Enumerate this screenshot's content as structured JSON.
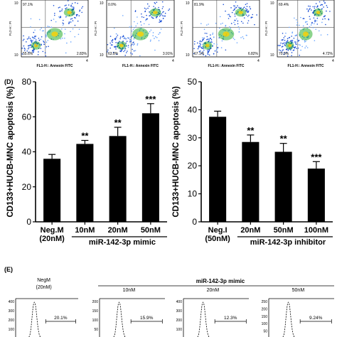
{
  "flow_panels": {
    "top_labels": [
      "97.1%",
      "0.0%",
      "81.9%",
      "69.4%"
    ],
    "bottom_left": [
      "55.6%",
      "63.8%",
      "67.1%",
      "70.9%"
    ],
    "bottom_right": [
      "2.83%",
      "3.91%",
      "6.82%",
      "4.72%"
    ],
    "ylabel": "FL2-H:: PI",
    "xlabel": "FL1-H:: Annexin FITC",
    "tick_top": "10",
    "tick_bottom": "10",
    "tick_exp": "4"
  },
  "panel_d_label": "(D)",
  "panel_e_label": "(E)",
  "chart_data": [
    {
      "type": "bar",
      "ylabel": "CD133+HUCB-MNC apoptosis (%)",
      "ylim": [
        0,
        80
      ],
      "yticks": [
        0,
        20,
        40,
        60,
        80
      ],
      "categories": [
        "Neg.M\n(20nM)",
        "10nM",
        "20nM",
        "50nM"
      ],
      "values": [
        36,
        44.5,
        49,
        62
      ],
      "errors": [
        2.5,
        2,
        5,
        5.5
      ],
      "significance": [
        "",
        "**",
        "**",
        "***"
      ],
      "group_label": "miR-142-3p mimic"
    },
    {
      "type": "bar",
      "ylabel": "CD133+HUCB-MNC apoptosis (%)",
      "ylim": [
        0,
        50
      ],
      "yticks": [
        0,
        10,
        20,
        30,
        40,
        50
      ],
      "categories": [
        "Neg.I\n(50nM)",
        "20nM",
        "50nM",
        "100nM"
      ],
      "values": [
        37.5,
        28.5,
        25,
        19
      ],
      "errors": [
        2,
        2.5,
        3,
        2.5
      ],
      "significance": [
        "",
        "**",
        "**",
        "***"
      ],
      "group_label": "miR-142-3p inhibitor"
    }
  ],
  "histograms": {
    "header": "miR-142-3p mimic",
    "panels": [
      {
        "title": "NegM\n(20nM)",
        "pct": "20.1%",
        "yticks": [
          400,
          300,
          200,
          100
        ]
      },
      {
        "title": "10nM",
        "pct": "15.9%",
        "yticks": [
          200,
          150,
          100,
          50
        ]
      },
      {
        "title": "20nM",
        "pct": "12.3%",
        "yticks": [
          400,
          300,
          200,
          100
        ]
      },
      {
        "title": "50nM",
        "pct": "9.24%",
        "yticks": [
          250,
          200,
          150,
          100,
          50
        ]
      }
    ]
  }
}
